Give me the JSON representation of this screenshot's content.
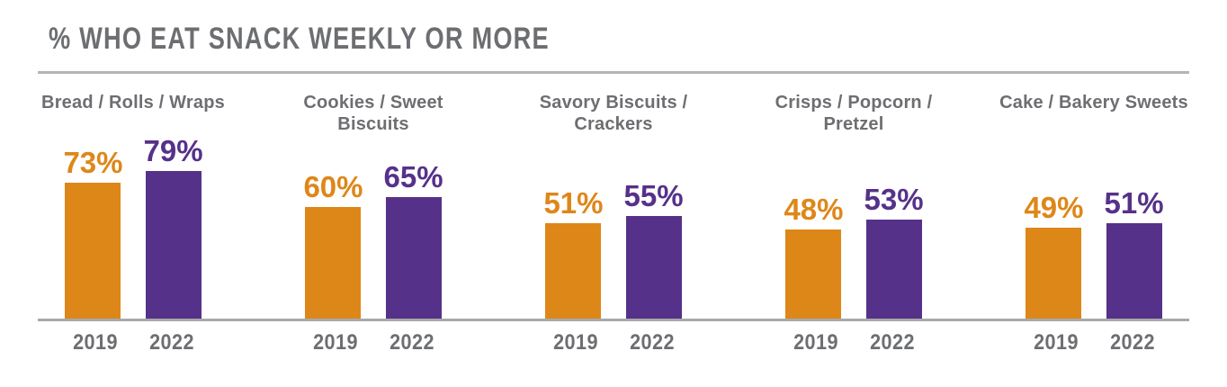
{
  "page": {
    "background": "#ffffff"
  },
  "header": {
    "title": "% WHO EAT SNACK WEEKLY OR MORE"
  },
  "colors": {
    "series_2019_orange": "#DE8719",
    "series_2022_purple": "#563189",
    "text_gray": "#6D6E71",
    "title_rule_gray": "#B3B5B7",
    "baseline_gray": "#A7A9AC"
  },
  "chart_data": {
    "type": "bar",
    "title": "% WHO EAT SNACK WEEKLY OR MORE",
    "categories": [
      "Bread / Rolls / Wraps",
      "Cookies / Sweet Biscuits",
      "Savory Biscuits / Crackers",
      "Crisps / Popcorn / Pretzel",
      "Cake / Bakery Sweets"
    ],
    "x_tick_labels": [
      "2019",
      "2022"
    ],
    "series": [
      {
        "name": "2019",
        "color": "#DE8719",
        "values": [
          73,
          60,
          51,
          48,
          49
        ]
      },
      {
        "name": "2022",
        "color": "#563189",
        "values": [
          79,
          65,
          55,
          53,
          51
        ]
      }
    ],
    "value_suffix": "%",
    "ylim": [
      0,
      100
    ],
    "grid": false,
    "legend_position": "none",
    "value_label_position": "above bars"
  },
  "groups": [
    {
      "label": "Bread / Rolls / Wraps",
      "v2019": "73%",
      "v2022": "79%"
    },
    {
      "label": "Cookies / Sweet Biscuits",
      "v2019": "60%",
      "v2022": "65%"
    },
    {
      "label": "Savory Biscuits / Crackers",
      "v2019": "51%",
      "v2022": "55%"
    },
    {
      "label": "Crisps / Popcorn / Pretzel",
      "v2019": "48%",
      "v2022": "53%"
    },
    {
      "label": "Cake / Bakery Sweets",
      "v2019": "49%",
      "v2022": "51%"
    }
  ]
}
